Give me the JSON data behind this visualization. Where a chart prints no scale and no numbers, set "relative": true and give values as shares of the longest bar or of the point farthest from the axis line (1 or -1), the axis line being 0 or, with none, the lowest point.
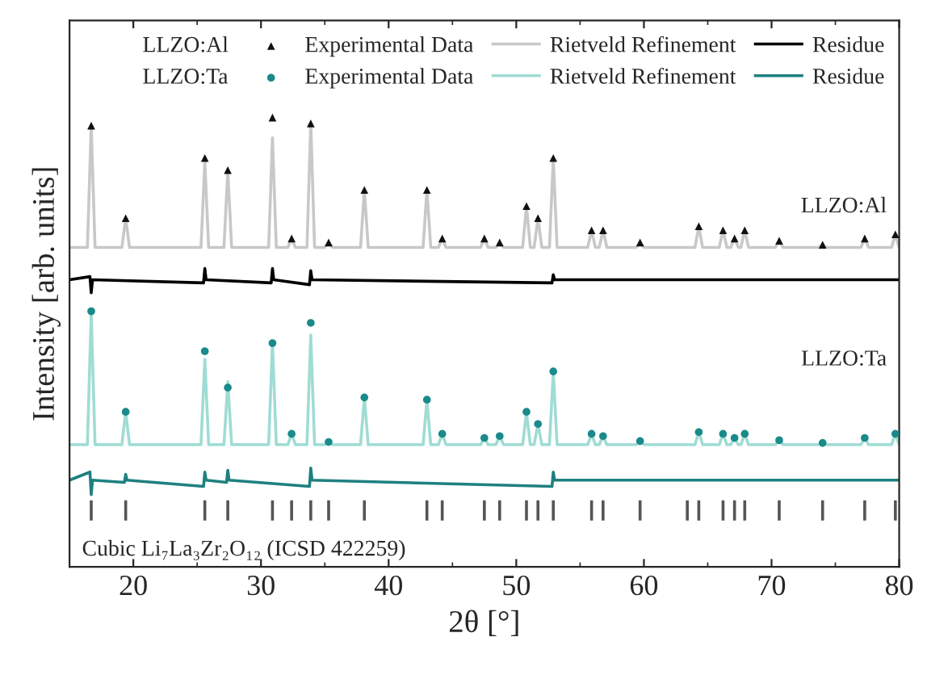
{
  "chart_data": {
    "type": "line",
    "relative": true,
    "xlabel": "2θ [°]",
    "ylabel": "Intensity [arb. units]",
    "xlim": [
      15,
      80
    ],
    "xticks": [
      20,
      30,
      40,
      50,
      60,
      70,
      80
    ],
    "legend": "top",
    "grid": false,
    "annotations": [
      "LLZO:Al",
      "LLZO:Ta",
      "LLZO:Al",
      "LLZO:Ta",
      "Cubic Li₇La₃Zr₂O₁₂ (ICSD 422259)"
    ],
    "series": [
      {
        "name": "Experimental Data",
        "type": "scatter",
        "color": "#111111",
        "marker": "triangle",
        "x": [
          16.7,
          19.4,
          25.6,
          27.4,
          30.9,
          32.4,
          33.9,
          35.3,
          38.1,
          43.0,
          44.2,
          47.5,
          48.7,
          50.8,
          51.7,
          52.9,
          55.9,
          56.8,
          59.7,
          64.3,
          66.2,
          67.1,
          67.9,
          70.6,
          74.0,
          77.3,
          79.7
        ],
        "values": [
          0.982,
          0.776,
          0.91,
          0.883,
          1.0,
          0.731,
          0.987,
          0.722,
          0.839,
          0.839,
          0.731,
          0.731,
          0.722,
          0.803,
          0.776,
          0.91,
          0.749,
          0.749,
          0.722,
          0.758,
          0.749,
          0.731,
          0.749,
          0.726,
          0.717,
          0.731,
          0.74
        ]
      },
      {
        "name": "Rietveld Refinement",
        "color": "#c8c8c8",
        "marker": "none",
        "x": [
          15,
          16.4,
          16.7,
          17.0,
          19.1,
          19.4,
          19.7,
          25.3,
          25.6,
          25.9,
          27.1,
          27.4,
          27.7,
          30.6,
          30.9,
          31.2,
          32.1,
          32.4,
          32.7,
          33.6,
          33.9,
          34.2,
          35.0,
          35.3,
          35.6,
          37.8,
          38.1,
          38.4,
          42.7,
          43.0,
          43.3,
          43.9,
          44.2,
          44.5,
          47.2,
          47.5,
          47.8,
          48.4,
          48.7,
          49.0,
          50.5,
          50.8,
          51.1,
          51.4,
          51.7,
          52.0,
          52.6,
          52.9,
          53.2,
          55.6,
          55.9,
          56.2,
          56.5,
          56.8,
          57.1,
          59.4,
          59.7,
          60.0,
          64.0,
          64.3,
          64.6,
          65.9,
          66.2,
          66.5,
          66.8,
          67.1,
          67.4,
          67.6,
          67.9,
          68.2,
          70.3,
          70.6,
          70.9,
          73.7,
          74.0,
          74.3,
          77.0,
          77.3,
          77.6,
          79.4,
          79.7,
          80.0
        ],
        "values": [
          0.711,
          0.711,
          0.982,
          0.711,
          0.711,
          0.776,
          0.711,
          0.711,
          0.901,
          0.711,
          0.711,
          0.883,
          0.711,
          0.711,
          0.955,
          0.711,
          0.711,
          0.731,
          0.711,
          0.711,
          0.987,
          0.711,
          0.711,
          0.722,
          0.711,
          0.711,
          0.839,
          0.711,
          0.711,
          0.839,
          0.711,
          0.711,
          0.731,
          0.711,
          0.711,
          0.731,
          0.711,
          0.711,
          0.722,
          0.711,
          0.711,
          0.803,
          0.711,
          0.711,
          0.776,
          0.711,
          0.711,
          0.91,
          0.711,
          0.711,
          0.749,
          0.711,
          0.711,
          0.749,
          0.711,
          0.711,
          0.722,
          0.711,
          0.711,
          0.758,
          0.711,
          0.711,
          0.749,
          0.711,
          0.711,
          0.731,
          0.711,
          0.711,
          0.749,
          0.711,
          0.711,
          0.726,
          0.711,
          0.711,
          0.717,
          0.711,
          0.711,
          0.731,
          0.711,
          0.711,
          0.74,
          0.711
        ]
      },
      {
        "name": "Residue",
        "color": "#000000",
        "marker": "none",
        "x": [
          15,
          16.6,
          16.7,
          16.8,
          25.5,
          25.6,
          25.7,
          30.8,
          30.9,
          31.0,
          33.8,
          33.9,
          34.0,
          52.8,
          52.9,
          53.0,
          80
        ],
        "values": [
          0.639,
          0.646,
          0.61,
          0.639,
          0.632,
          0.664,
          0.639,
          0.632,
          0.664,
          0.639,
          0.628,
          0.659,
          0.639,
          0.632,
          0.65,
          0.639,
          0.639
        ]
      },
      {
        "name": "Experimental Data",
        "type": "scatter",
        "color": "#1a8a8a",
        "marker": "circle",
        "x": [
          16.7,
          19.4,
          25.6,
          27.4,
          30.9,
          32.4,
          33.9,
          35.3,
          38.1,
          43.0,
          44.2,
          47.5,
          48.7,
          50.8,
          51.7,
          52.9,
          55.9,
          56.8,
          59.7,
          64.3,
          66.2,
          67.1,
          67.9,
          70.6,
          74.0,
          77.3,
          79.7
        ],
        "values": [
          0.569,
          0.345,
          0.48,
          0.399,
          0.498,
          0.296,
          0.543,
          0.278,
          0.377,
          0.372,
          0.296,
          0.287,
          0.291,
          0.345,
          0.318,
          0.435,
          0.296,
          0.291,
          0.28,
          0.3,
          0.296,
          0.287,
          0.296,
          0.282,
          0.276,
          0.287,
          0.296
        ]
      },
      {
        "name": "Rietveld Refinement",
        "color": "#9fdcd4",
        "marker": "none",
        "x": [
          15,
          16.4,
          16.7,
          17.0,
          19.1,
          19.4,
          19.7,
          25.3,
          25.6,
          25.9,
          27.1,
          27.4,
          27.7,
          30.6,
          30.9,
          31.2,
          32.1,
          32.4,
          32.7,
          33.6,
          33.9,
          34.2,
          35.0,
          35.3,
          35.6,
          37.8,
          38.1,
          38.4,
          42.7,
          43.0,
          43.3,
          43.9,
          44.2,
          44.5,
          47.2,
          47.5,
          47.8,
          48.4,
          48.7,
          49.0,
          50.5,
          50.8,
          51.1,
          51.4,
          51.7,
          52.0,
          52.6,
          52.9,
          53.2,
          55.6,
          55.9,
          56.2,
          56.5,
          56.8,
          57.1,
          59.4,
          59.7,
          60.0,
          64.0,
          64.3,
          64.6,
          65.9,
          66.2,
          66.5,
          66.8,
          67.1,
          67.4,
          67.6,
          67.9,
          68.2,
          70.3,
          70.6,
          70.9,
          73.7,
          74.0,
          74.3,
          77.0,
          77.3,
          77.6,
          79.4,
          79.7,
          80.0
        ],
        "values": [
          0.272,
          0.272,
          0.567,
          0.272,
          0.272,
          0.345,
          0.272,
          0.272,
          0.462,
          0.272,
          0.272,
          0.412,
          0.272,
          0.272,
          0.498,
          0.272,
          0.272,
          0.296,
          0.272,
          0.272,
          0.516,
          0.272,
          0.272,
          0.278,
          0.272,
          0.272,
          0.377,
          0.272,
          0.272,
          0.372,
          0.272,
          0.272,
          0.296,
          0.272,
          0.272,
          0.287,
          0.272,
          0.272,
          0.291,
          0.272,
          0.272,
          0.343,
          0.272,
          0.272,
          0.318,
          0.272,
          0.272,
          0.433,
          0.272,
          0.272,
          0.296,
          0.272,
          0.272,
          0.291,
          0.272,
          0.272,
          0.28,
          0.272,
          0.272,
          0.3,
          0.272,
          0.272,
          0.296,
          0.272,
          0.272,
          0.287,
          0.272,
          0.272,
          0.296,
          0.272,
          0.272,
          0.282,
          0.272,
          0.272,
          0.276,
          0.272,
          0.272,
          0.287,
          0.272,
          0.272,
          0.296,
          0.272
        ]
      },
      {
        "name": "Residue",
        "color": "#1f8080",
        "marker": "none",
        "x": [
          15,
          16.6,
          16.7,
          16.8,
          19.3,
          19.4,
          19.5,
          25.5,
          25.6,
          25.7,
          27.3,
          27.4,
          27.5,
          33.8,
          33.9,
          34.0,
          52.8,
          52.9,
          53.0,
          80
        ],
        "values": [
          0.193,
          0.211,
          0.161,
          0.193,
          0.188,
          0.206,
          0.193,
          0.179,
          0.211,
          0.193,
          0.188,
          0.215,
          0.193,
          0.179,
          0.22,
          0.193,
          0.179,
          0.211,
          0.193,
          0.193
        ]
      },
      {
        "color": "#555555",
        "marker": "none",
        "x": [
          16.7,
          16.7
        ],
        "values": [
          0.103,
          0.148
        ]
      },
      {
        "color": "#555555",
        "marker": "none",
        "x": [
          19.4,
          19.4
        ],
        "values": [
          0.103,
          0.148
        ]
      },
      {
        "color": "#555555",
        "marker": "none",
        "x": [
          25.6,
          25.6
        ],
        "values": [
          0.103,
          0.148
        ]
      },
      {
        "color": "#555555",
        "marker": "none",
        "x": [
          27.4,
          27.4
        ],
        "values": [
          0.103,
          0.148
        ]
      },
      {
        "color": "#555555",
        "marker": "none",
        "x": [
          30.9,
          30.9
        ],
        "values": [
          0.103,
          0.148
        ]
      },
      {
        "color": "#555555",
        "marker": "none",
        "x": [
          32.4,
          32.4
        ],
        "values": [
          0.103,
          0.148
        ]
      },
      {
        "color": "#555555",
        "marker": "none",
        "x": [
          33.9,
          33.9
        ],
        "values": [
          0.103,
          0.148
        ]
      },
      {
        "color": "#555555",
        "marker": "none",
        "x": [
          35.3,
          35.3
        ],
        "values": [
          0.103,
          0.148
        ]
      },
      {
        "color": "#555555",
        "marker": "none",
        "x": [
          38.1,
          38.1
        ],
        "values": [
          0.103,
          0.148
        ]
      },
      {
        "color": "#555555",
        "marker": "none",
        "x": [
          43.0,
          43.0
        ],
        "values": [
          0.103,
          0.148
        ]
      },
      {
        "color": "#555555",
        "marker": "none",
        "x": [
          44.2,
          44.2
        ],
        "values": [
          0.103,
          0.148
        ]
      },
      {
        "color": "#555555",
        "marker": "none",
        "x": [
          47.5,
          47.5
        ],
        "values": [
          0.103,
          0.148
        ]
      },
      {
        "color": "#555555",
        "marker": "none",
        "x": [
          48.7,
          48.7
        ],
        "values": [
          0.103,
          0.148
        ]
      },
      {
        "color": "#555555",
        "marker": "none",
        "x": [
          50.8,
          50.8
        ],
        "values": [
          0.103,
          0.148
        ]
      },
      {
        "color": "#555555",
        "marker": "none",
        "x": [
          51.7,
          51.7
        ],
        "values": [
          0.103,
          0.148
        ]
      },
      {
        "color": "#555555",
        "marker": "none",
        "x": [
          52.9,
          52.9
        ],
        "values": [
          0.103,
          0.148
        ]
      },
      {
        "color": "#555555",
        "marker": "none",
        "x": [
          55.9,
          55.9
        ],
        "values": [
          0.103,
          0.148
        ]
      },
      {
        "color": "#555555",
        "marker": "none",
        "x": [
          56.8,
          56.8
        ],
        "values": [
          0.103,
          0.148
        ]
      },
      {
        "color": "#555555",
        "marker": "none",
        "x": [
          59.7,
          59.7
        ],
        "values": [
          0.103,
          0.148
        ]
      },
      {
        "color": "#555555",
        "marker": "none",
        "x": [
          63.4,
          63.4
        ],
        "values": [
          0.103,
          0.148
        ]
      },
      {
        "color": "#555555",
        "marker": "none",
        "x": [
          64.3,
          64.3
        ],
        "values": [
          0.103,
          0.148
        ]
      },
      {
        "color": "#555555",
        "marker": "none",
        "x": [
          66.2,
          66.2
        ],
        "values": [
          0.103,
          0.148
        ]
      },
      {
        "color": "#555555",
        "marker": "none",
        "x": [
          67.1,
          67.1
        ],
        "values": [
          0.103,
          0.148
        ]
      },
      {
        "color": "#555555",
        "marker": "none",
        "x": [
          67.9,
          67.9
        ],
        "values": [
          0.103,
          0.148
        ]
      },
      {
        "color": "#555555",
        "marker": "none",
        "x": [
          70.6,
          70.6
        ],
        "values": [
          0.103,
          0.148
        ]
      },
      {
        "color": "#555555",
        "marker": "none",
        "x": [
          74.0,
          74.0
        ],
        "values": [
          0.103,
          0.148
        ]
      },
      {
        "color": "#555555",
        "marker": "none",
        "x": [
          77.3,
          77.3
        ],
        "values": [
          0.103,
          0.148
        ]
      },
      {
        "color": "#555555",
        "marker": "none",
        "x": [
          79.7,
          79.7
        ],
        "values": [
          0.103,
          0.148
        ]
      }
    ]
  }
}
